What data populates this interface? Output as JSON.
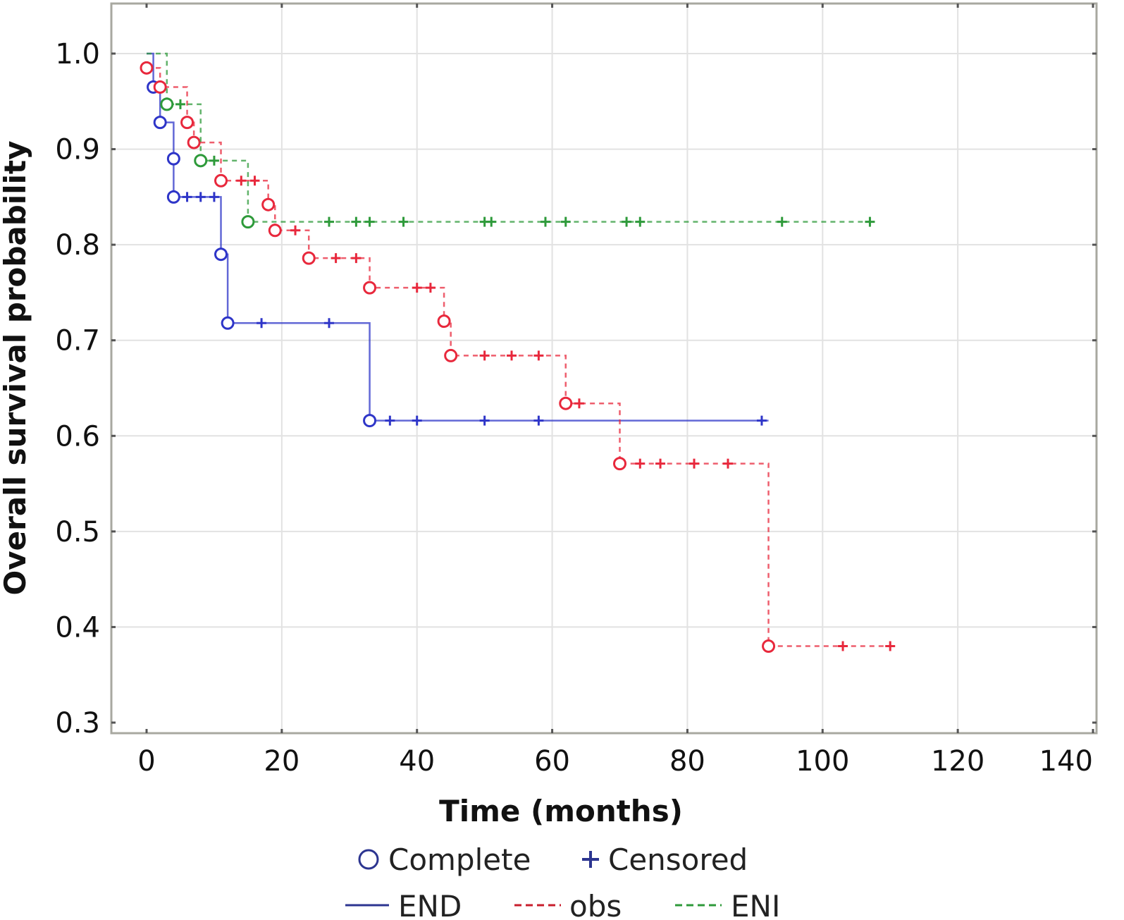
{
  "chart_data": {
    "type": "line",
    "subtype": "kaplan-meier step",
    "title": "",
    "xlabel": "Time (months)",
    "ylabel": "Overall survival probability",
    "xlim": [
      0,
      140
    ],
    "ylim": [
      0.3,
      1.0
    ],
    "x_ticks": [
      "0",
      "20",
      "40",
      "60",
      "80",
      "100",
      "120",
      "140"
    ],
    "y_ticks": [
      "0.3",
      "0.4",
      "0.5",
      "0.6",
      "0.7",
      "0.8",
      "0.9",
      "1.0"
    ],
    "grid": true,
    "legend_position": "bottom",
    "marker_legend": [
      {
        "label": "Complete",
        "marker": "circle",
        "color": "#2c3590"
      },
      {
        "label": "Censored",
        "marker": "plus",
        "color": "#2c3590"
      }
    ],
    "series": [
      {
        "name": "END",
        "color": "#2e35c8",
        "line_style": "solid",
        "steps": [
          [
            0,
            1.0
          ],
          [
            1,
            0.965
          ],
          [
            2,
            0.928
          ],
          [
            4,
            0.89
          ],
          [
            4,
            0.85
          ],
          [
            11,
            0.79
          ],
          [
            12,
            0.718
          ],
          [
            33,
            0.616
          ],
          [
            92,
            0.616
          ]
        ],
        "events": [
          [
            1,
            0.965
          ],
          [
            2,
            0.928
          ],
          [
            4,
            0.89
          ],
          [
            4,
            0.85
          ],
          [
            11,
            0.79
          ],
          [
            12,
            0.718
          ],
          [
            33,
            0.616
          ]
        ],
        "censored": [
          [
            6,
            0.85
          ],
          [
            8,
            0.85
          ],
          [
            10,
            0.85
          ],
          [
            17,
            0.718
          ],
          [
            27,
            0.718
          ],
          [
            36,
            0.616
          ],
          [
            40,
            0.616
          ],
          [
            50,
            0.616
          ],
          [
            58,
            0.616
          ],
          [
            91,
            0.616
          ]
        ]
      },
      {
        "name": "obs",
        "color": "#e8283c",
        "line_style": "dashed",
        "steps": [
          [
            0,
            0.985
          ],
          [
            2,
            0.965
          ],
          [
            6,
            0.928
          ],
          [
            7,
            0.907
          ],
          [
            11,
            0.867
          ],
          [
            18,
            0.842
          ],
          [
            19,
            0.815
          ],
          [
            24,
            0.786
          ],
          [
            33,
            0.755
          ],
          [
            44,
            0.72
          ],
          [
            45,
            0.684
          ],
          [
            62,
            0.634
          ],
          [
            70,
            0.571
          ],
          [
            92,
            0.38
          ],
          [
            110,
            0.38
          ]
        ],
        "events": [
          [
            0,
            0.985
          ],
          [
            2,
            0.965
          ],
          [
            6,
            0.928
          ],
          [
            7,
            0.907
          ],
          [
            11,
            0.867
          ],
          [
            18,
            0.842
          ],
          [
            19,
            0.815
          ],
          [
            24,
            0.786
          ],
          [
            33,
            0.755
          ],
          [
            44,
            0.72
          ],
          [
            45,
            0.684
          ],
          [
            62,
            0.634
          ],
          [
            70,
            0.571
          ],
          [
            92,
            0.38
          ]
        ],
        "censored": [
          [
            14,
            0.867
          ],
          [
            16,
            0.867
          ],
          [
            22,
            0.815
          ],
          [
            28,
            0.786
          ],
          [
            31,
            0.786
          ],
          [
            40,
            0.755
          ],
          [
            42,
            0.755
          ],
          [
            50,
            0.684
          ],
          [
            54,
            0.684
          ],
          [
            58,
            0.684
          ],
          [
            64,
            0.634
          ],
          [
            73,
            0.571
          ],
          [
            76,
            0.571
          ],
          [
            81,
            0.571
          ],
          [
            86,
            0.571
          ],
          [
            103,
            0.38
          ],
          [
            110,
            0.38
          ]
        ]
      },
      {
        "name": "ENI",
        "color": "#2e9a3a",
        "line_style": "dashed",
        "steps": [
          [
            0,
            1.0
          ],
          [
            3,
            0.947
          ],
          [
            8,
            0.888
          ],
          [
            15,
            0.824
          ],
          [
            107,
            0.824
          ]
        ],
        "events": [
          [
            3,
            0.947
          ],
          [
            8,
            0.888
          ],
          [
            15,
            0.824
          ]
        ],
        "censored": [
          [
            5,
            0.947
          ],
          [
            10,
            0.888
          ],
          [
            27,
            0.824
          ],
          [
            31,
            0.824
          ],
          [
            33,
            0.824
          ],
          [
            38,
            0.824
          ],
          [
            50,
            0.824
          ],
          [
            51,
            0.824
          ],
          [
            59,
            0.824
          ],
          [
            62,
            0.824
          ],
          [
            71,
            0.824
          ],
          [
            73,
            0.824
          ],
          [
            94,
            0.824
          ],
          [
            107,
            0.824
          ]
        ]
      }
    ]
  }
}
